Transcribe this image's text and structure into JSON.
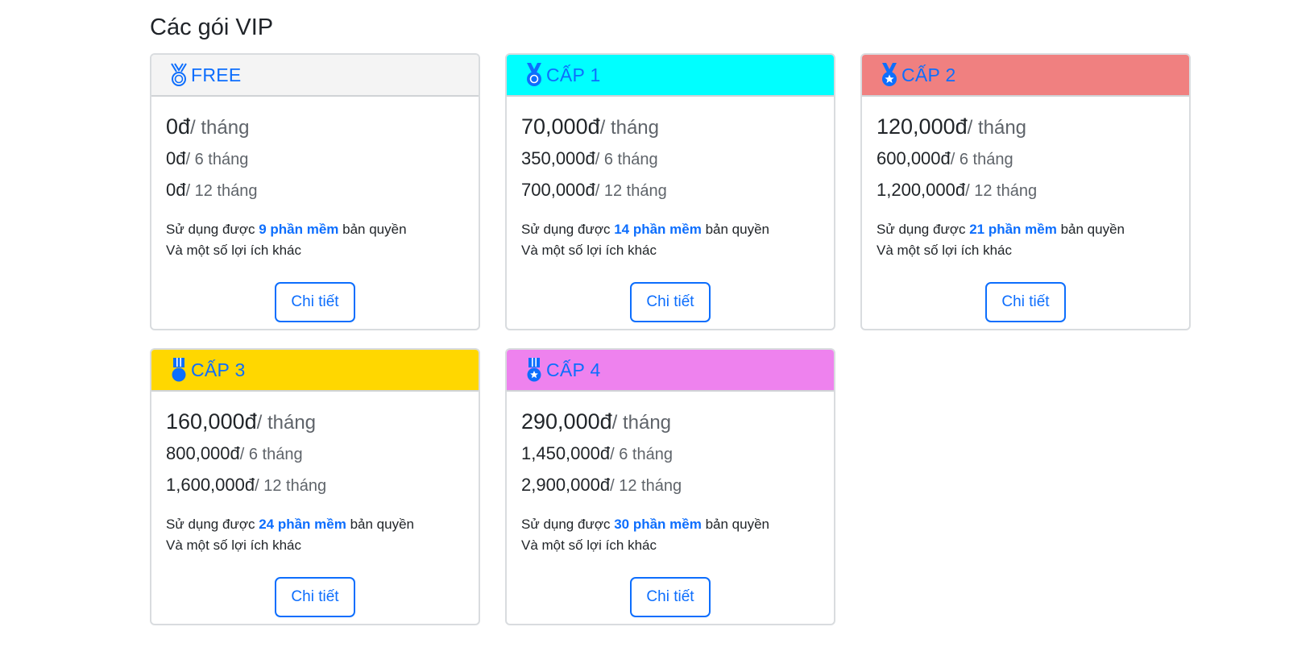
{
  "page": {
    "title": "Các gói VIP"
  },
  "labels": {
    "usage_prefix": "Sử dụng được",
    "usage_suffix": "bản quyền",
    "extra": "Và một số lợi ích khác",
    "detail_button": "Chi tiết"
  },
  "plans": [
    {
      "name": "FREE",
      "header_color": "#f4f4f4",
      "icon": "medal-outline-icon",
      "price_month": "0đ",
      "period_month": "/ tháng",
      "price_6": "0đ",
      "period_6": "/ 6 tháng",
      "price_12": "0đ",
      "period_12": "/ 12 tháng",
      "software": "9 phần mềm"
    },
    {
      "name": "CẤP 1",
      "header_color": "#00ffff",
      "icon": "medal-icon",
      "price_month": "70,000đ",
      "period_month": "/ tháng",
      "price_6": "350,000đ",
      "period_6": "/ 6 tháng",
      "price_12": "700,000đ",
      "period_12": "/ 12 tháng",
      "software": "14 phần mềm"
    },
    {
      "name": "CẤP 2",
      "header_color": "#f08080",
      "icon": "medal-star-icon",
      "price_month": "120,000đ",
      "period_month": "/ tháng",
      "price_6": "600,000đ",
      "period_6": "/ 6 tháng",
      "price_12": "1,200,000đ",
      "period_12": "/ 12 tháng",
      "software": "21 phần mềm"
    },
    {
      "name": "CẤP 3",
      "header_color": "#ffd700",
      "icon": "military-medal-icon",
      "price_month": "160,000đ",
      "period_month": "/ tháng",
      "price_6": "800,000đ",
      "period_6": "/ 6 tháng",
      "price_12": "1,600,000đ",
      "period_12": "/ 12 tháng",
      "software": "24 phần mềm"
    },
    {
      "name": "CẤP 4",
      "header_color": "#ee82ee",
      "icon": "military-medal-star-icon",
      "price_month": "290,000đ",
      "period_month": "/ tháng",
      "price_6": "1,450,000đ",
      "period_6": "/ 6 tháng",
      "price_12": "2,900,000đ",
      "period_12": "/ 12 tháng",
      "software": "30 phần mềm"
    }
  ]
}
